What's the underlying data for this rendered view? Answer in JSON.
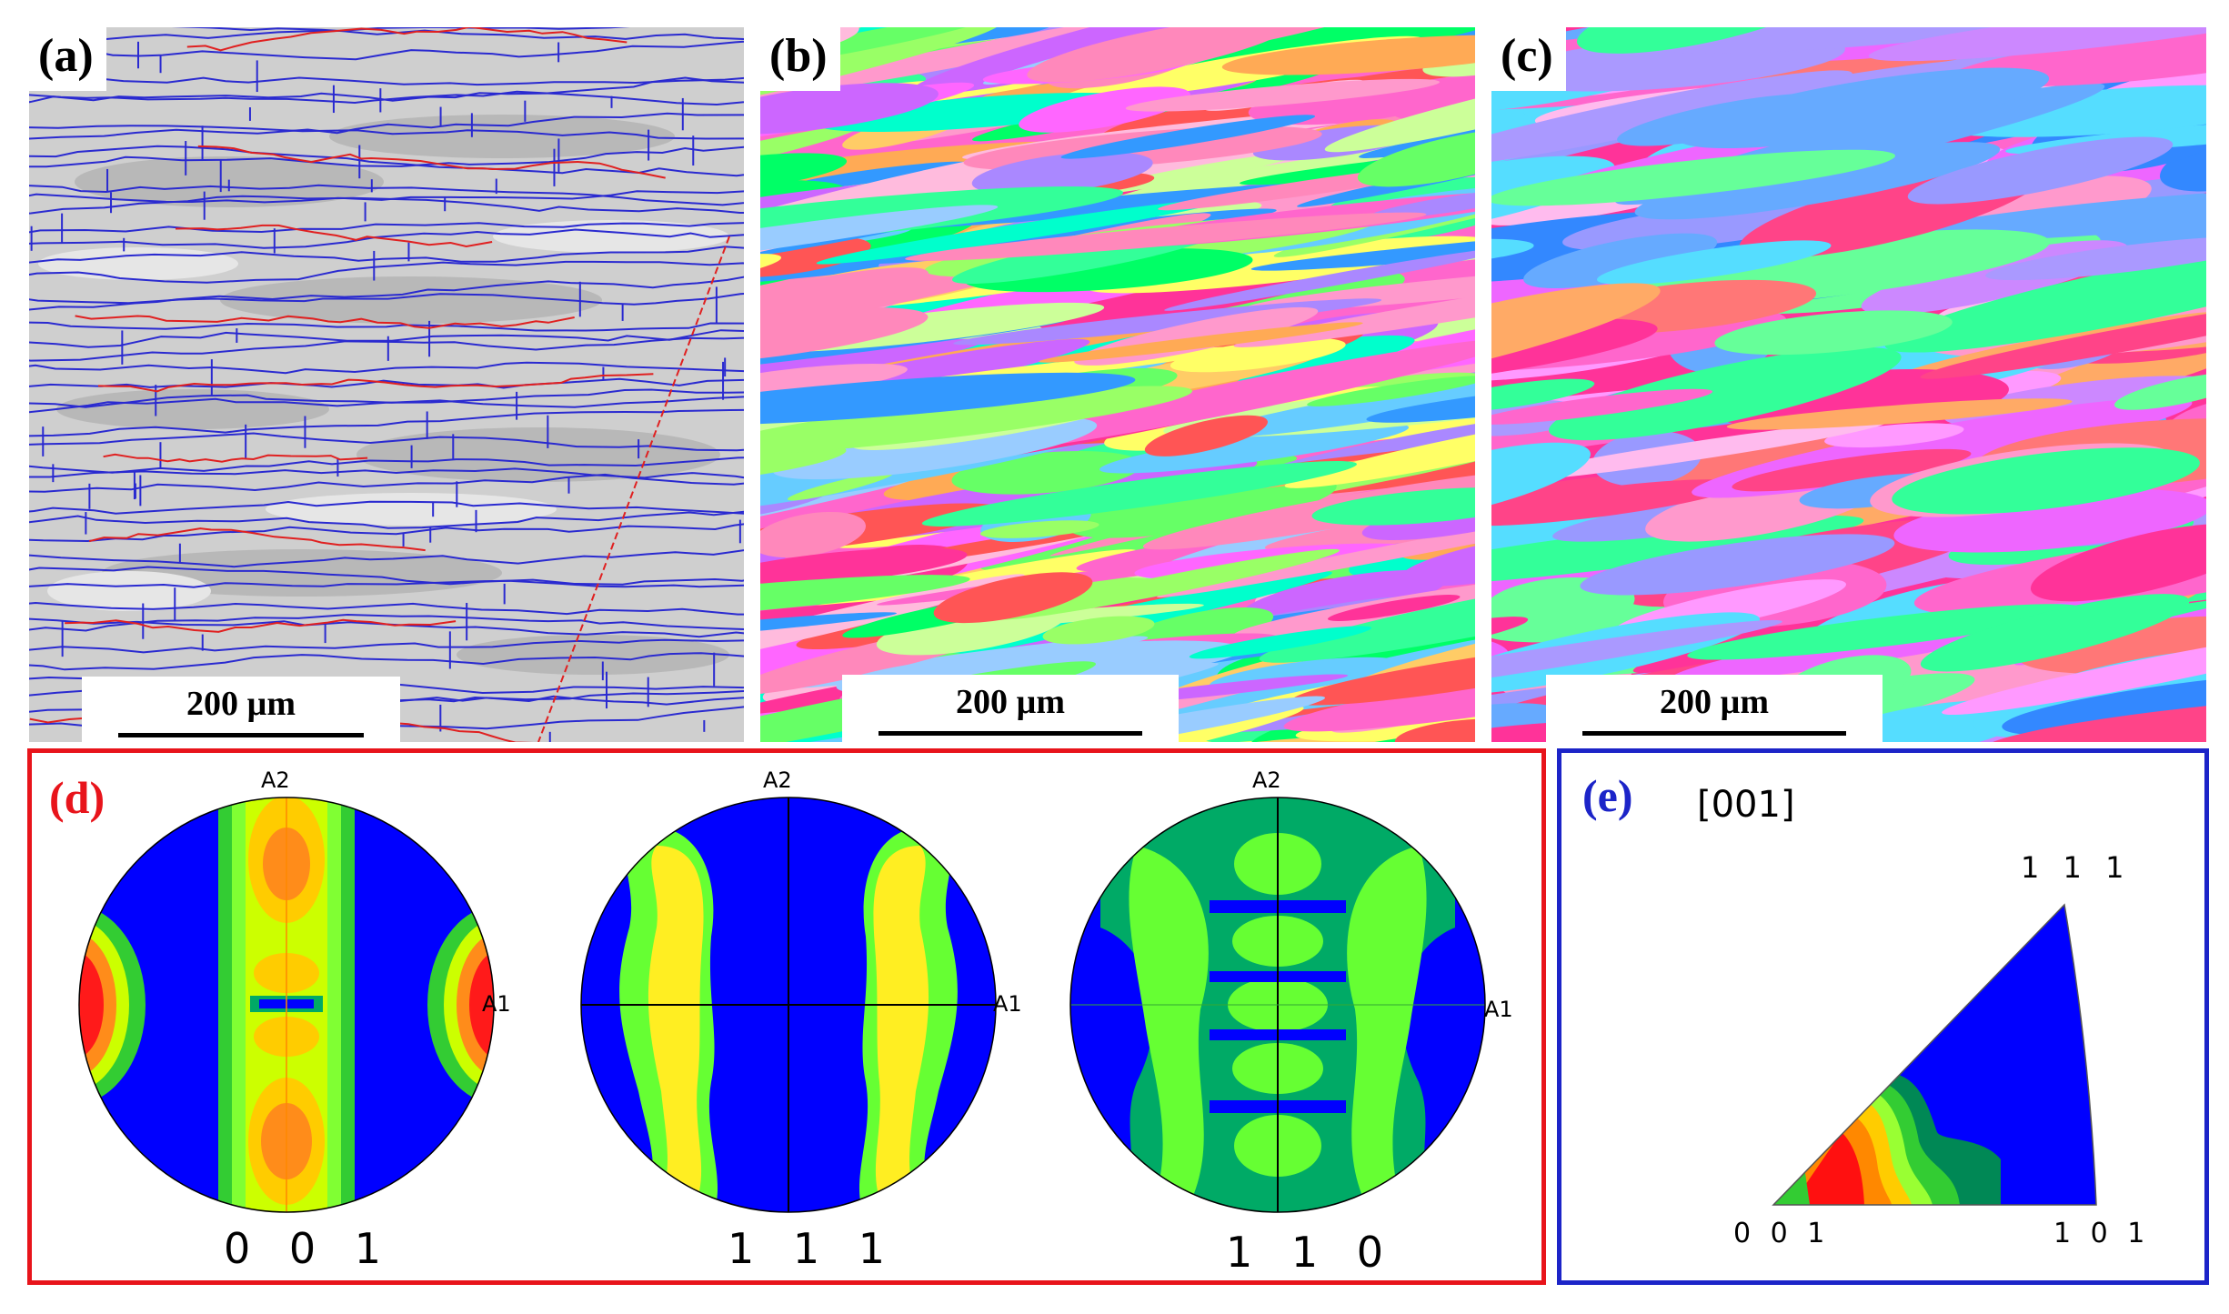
{
  "panels": {
    "a": {
      "label": "(a)",
      "scale_bar": "200 µm"
    },
    "b": {
      "label": "(b)",
      "scale_bar": "200 µm"
    },
    "c": {
      "label": "(c)",
      "scale_bar": "200 µm"
    }
  },
  "pole_figures": {
    "label": "(d)",
    "axis_top": "A2",
    "axis_right": "A1",
    "figures": [
      {
        "name": "0 0 1"
      },
      {
        "name": "1 1 1"
      },
      {
        "name": "1 1 0"
      }
    ]
  },
  "inverse_pole_figure": {
    "label": "(e)",
    "direction": "[001]",
    "corner_top": "1 1 1",
    "corner_left": "0 0 1",
    "corner_right": "1 0 1"
  },
  "colors": {
    "frame_d": "#e8141b",
    "frame_e": "#1c24c8",
    "label_d": "#e8141b",
    "label_e": "#1c24c8",
    "hagb": "#2a2ad0",
    "lagb": "#e02020",
    "contour_low": "#0000ff",
    "contour_mid": "#66ff33",
    "contour_high": "#ff0000"
  }
}
